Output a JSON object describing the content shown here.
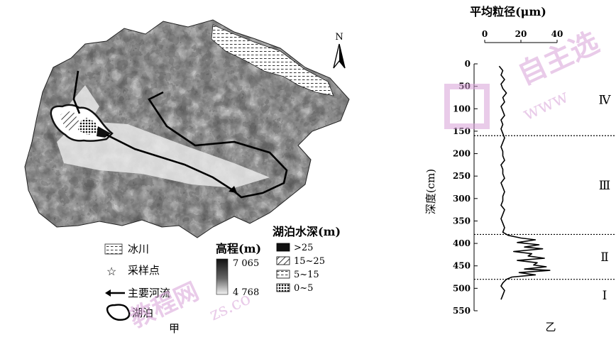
{
  "map": {
    "north_label": "N",
    "legend": {
      "glacier": "冰川",
      "sample_point": "采样点",
      "main_river": "主要河流",
      "lake": "湖泊",
      "panel_label": "甲"
    },
    "elevation_legend": {
      "title": "高程(m)",
      "max": "7 065",
      "min": "4 768"
    },
    "depth_legend": {
      "title": "湖泊水深(m)",
      "classes": [
        ">25",
        "15~25",
        "5~15",
        "0~5"
      ]
    }
  },
  "chart": {
    "panel_label": "乙",
    "top_title": "平均粒径(μm)",
    "ylabel": "深度(cm)",
    "zones": [
      "Ⅳ",
      "Ⅲ",
      "Ⅱ",
      "Ⅰ"
    ]
  },
  "watermark": {
    "text1": "自主选",
    "text2": "www",
    "text3": "教程网",
    "text4": "zs.co"
  },
  "chart_data": {
    "type": "line",
    "x_axis_label": "平均粒径(μm)",
    "y_axis_label": "深度(cm)",
    "xlim": [
      0,
      40
    ],
    "ylim": [
      0,
      550
    ],
    "y_inverted": true,
    "x_ticks": [
      0,
      20,
      40
    ],
    "y_ticks": [
      0,
      50,
      100,
      150,
      200,
      250,
      300,
      350,
      400,
      450,
      500,
      550
    ],
    "zone_boundaries_cm": [
      160,
      380,
      480
    ],
    "zones": [
      {
        "label": "Ⅳ",
        "from": 0,
        "to": 160
      },
      {
        "label": "Ⅲ",
        "from": 160,
        "to": 380
      },
      {
        "label": "Ⅱ",
        "from": 380,
        "to": 480
      },
      {
        "label": "Ⅰ",
        "from": 480,
        "to": 550
      }
    ],
    "series": [
      {
        "depth": [
          5,
          15,
          25,
          35,
          45,
          55,
          65,
          75,
          85,
          95,
          105,
          115,
          125,
          135,
          145,
          155,
          165,
          175,
          185,
          195,
          205,
          215,
          225,
          235,
          245,
          255,
          265,
          275,
          285,
          295,
          305,
          315,
          325,
          335,
          345,
          355,
          365,
          375,
          382,
          388,
          392,
          398,
          403,
          408,
          412,
          418,
          423,
          428,
          433,
          438,
          443,
          448,
          452,
          457,
          460,
          465,
          470,
          475,
          480,
          488,
          495,
          505,
          515,
          525
        ],
        "grain_size": [
          8,
          10,
          9,
          11,
          9,
          10,
          12,
          10,
          11,
          9,
          10,
          11,
          9,
          10,
          9,
          10,
          11,
          10,
          9,
          10,
          10,
          11,
          9,
          10,
          10,
          11,
          9,
          10,
          11,
          10,
          10,
          9,
          11,
          10,
          9,
          10,
          11,
          10,
          13,
          20,
          28,
          18,
          30,
          22,
          32,
          16,
          26,
          24,
          33,
          18,
          29,
          27,
          34,
          22,
          36,
          19,
          28,
          15,
          12,
          10,
          9,
          11,
          10,
          9
        ]
      }
    ]
  }
}
